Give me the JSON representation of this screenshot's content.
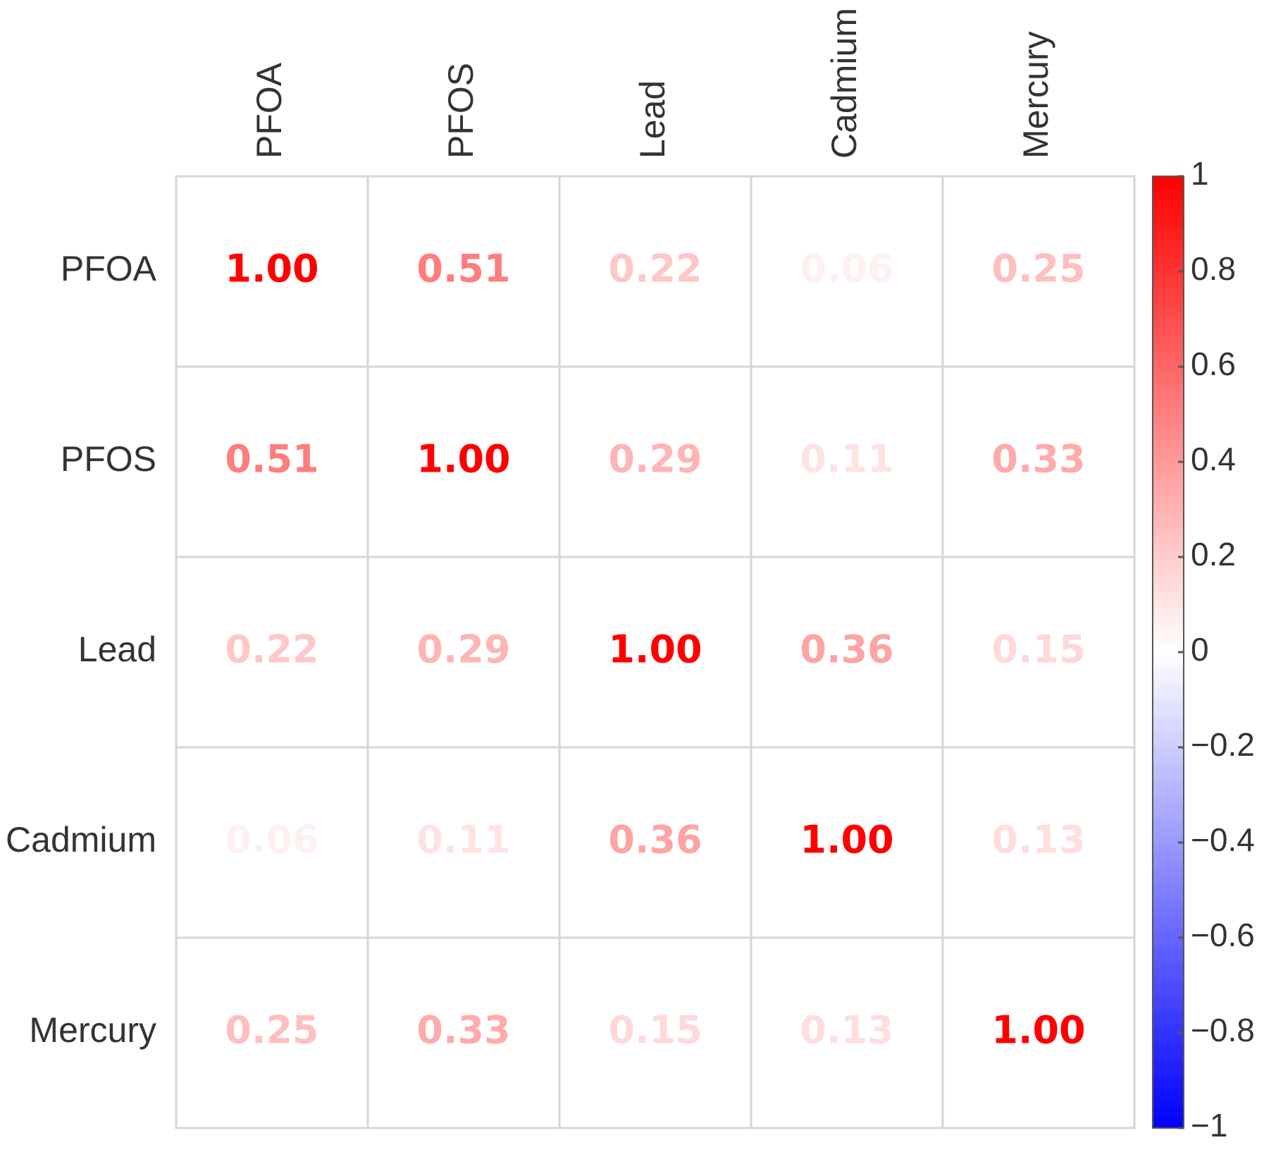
{
  "chart_data": {
    "type": "heatmap",
    "variables": [
      "PFOA",
      "PFOS",
      "Lead",
      "Cadmium",
      "Mercury"
    ],
    "matrix": [
      [
        1.0,
        0.51,
        0.22,
        0.06,
        0.25
      ],
      [
        0.51,
        1.0,
        0.29,
        0.11,
        0.33
      ],
      [
        0.22,
        0.29,
        1.0,
        0.36,
        0.15
      ],
      [
        0.06,
        0.11,
        0.36,
        1.0,
        0.13
      ],
      [
        0.25,
        0.33,
        0.15,
        0.13,
        1.0
      ]
    ],
    "colorbar": {
      "range": [
        -1,
        1
      ],
      "ticks": [
        1,
        0.8,
        0.6,
        0.4,
        0.2,
        0,
        -0.2,
        -0.4,
        -0.6,
        -0.8,
        -1
      ],
      "tick_labels": [
        "1",
        "0.8",
        "0.6",
        "0.4",
        "0.2",
        "0",
        "−0.2",
        "−0.4",
        "−0.6",
        "−0.8",
        "−1"
      ],
      "colors": {
        "negative": "#0000ff",
        "zero": "#ffffff",
        "positive": "#ff0000"
      }
    },
    "grid": true,
    "legend": "right"
  }
}
